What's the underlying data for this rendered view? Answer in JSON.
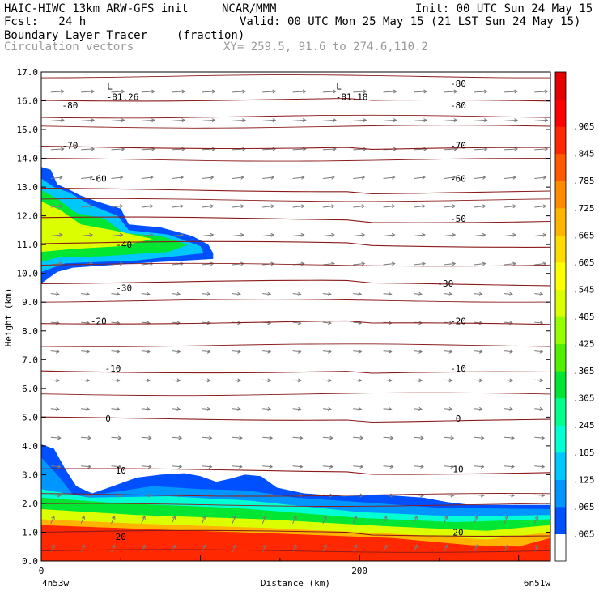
{
  "header": {
    "model": "HAIC-HIWC 13km ARW-GFS init",
    "org": "NCAR/MMM",
    "init": "Init: 00 UTC Sun 24 May 15",
    "fcst": "Fcst:   24 h",
    "valid": "Valid: 00 UTC Mon 25 May 15 (21 LST Sun 24 May 15)",
    "field1": "Boundary Layer Tracer",
    "field1_units": "(fraction)",
    "field2": "Circulation vectors",
    "xy": "XY= 259.5, 91.6 to 274.6,110.2"
  },
  "colors": {
    "frame": "#000000",
    "contour": "#8b1a1a",
    "vector": "#7a7a7a",
    "label_gray": "#9a9a9a"
  },
  "chart_data": {
    "type": "heatmap",
    "ylabel": "Height (km)",
    "xlabel": "Distance (km)",
    "xlim": [
      0,
      320
    ],
    "ylim": [
      0,
      17
    ],
    "x_ticks": [
      {
        "value": 0,
        "label": "0"
      },
      {
        "value": 200,
        "label": "200"
      }
    ],
    "x_endpoints": {
      "left": "4n53w",
      "right": "6n51w"
    },
    "y_ticks": [
      "0.0",
      "1.0",
      "2.0",
      "3.0",
      "4.0",
      "5.0",
      "6.0",
      "7.0",
      "8.0",
      "9.0",
      "10.0",
      "11.0",
      "12.0",
      "13.0",
      "14.0",
      "15.0",
      "16.0",
      "17.0"
    ],
    "colorbar": {
      "levels": [
        ".005",
        ".065",
        ".125",
        ".185",
        ".245",
        ".305",
        ".365",
        ".425",
        ".485",
        ".545",
        ".605",
        ".665",
        ".725",
        ".785",
        ".845",
        ".905",
        "-"
      ],
      "colors": [
        "#ffffff",
        "#0050ff",
        "#0096ff",
        "#00c8ff",
        "#00ffd2",
        "#00ff8c",
        "#00e632",
        "#50f000",
        "#96ff00",
        "#dcff00",
        "#ffff00",
        "#ffdc00",
        "#ffb400",
        "#ff8c00",
        "#ff5a00",
        "#ff2800",
        "#ff0000",
        "#e60000"
      ]
    },
    "temperature_contours": [
      {
        "value": 20,
        "height_km": 1.0
      },
      {
        "value": 10,
        "height_km": 3.15
      },
      {
        "value": 0,
        "height_km": 4.95
      },
      {
        "value": -10,
        "height_km": 6.6
      },
      {
        "value": -20,
        "height_km": 8.3
      },
      {
        "value": -30,
        "height_km": 9.7
      },
      {
        "value": -40,
        "height_km": 11.05
      },
      {
        "value": -50,
        "height_km": 11.9
      },
      {
        "value": -60,
        "height_km": 12.9
      },
      {
        "value": -70,
        "height_km": 14.4
      },
      {
        "value": -80,
        "height_km": 16.05
      }
    ],
    "contour_labels": [
      {
        "text": "20",
        "x": 50,
        "y": 0.85
      },
      {
        "text": "20",
        "x": 262,
        "y": 1.0
      },
      {
        "text": "10",
        "x": 50,
        "y": 3.15
      },
      {
        "text": "10",
        "x": 262,
        "y": 3.2
      },
      {
        "text": "0",
        "x": 42,
        "y": 4.95
      },
      {
        "text": "0",
        "x": 262,
        "y": 4.95
      },
      {
        "text": "-10",
        "x": 45,
        "y": 6.7
      },
      {
        "text": "-10",
        "x": 262,
        "y": 6.7
      },
      {
        "text": "-20",
        "x": 36,
        "y": 8.35
      },
      {
        "text": "-20",
        "x": 262,
        "y": 8.35
      },
      {
        "text": "-30",
        "x": 52,
        "y": 9.5
      },
      {
        "text": "-30",
        "x": 254,
        "y": 9.65
      },
      {
        "text": "-40",
        "x": 52,
        "y": 11.0
      },
      {
        "text": "-50",
        "x": 262,
        "y": 11.9
      },
      {
        "text": "-60",
        "x": 36,
        "y": 13.3
      },
      {
        "text": "-60",
        "x": 262,
        "y": 13.3
      },
      {
        "text": "-70",
        "x": 18,
        "y": 14.45
      },
      {
        "text": "-70",
        "x": 262,
        "y": 14.45
      },
      {
        "text": "-80",
        "x": 18,
        "y": 15.85
      },
      {
        "text": "-80",
        "x": 262,
        "y": 15.85
      },
      {
        "text": "-80",
        "x": 262,
        "y": 16.6
      }
    ],
    "minima_labels": [
      {
        "symbol": "L",
        "value": "-81.26",
        "x": 43,
        "y": 16.2
      },
      {
        "symbol": "L",
        "value": "-81.18",
        "x": 187,
        "y": 16.2
      }
    ],
    "tracer_layers": [
      {
        "level": 0.005,
        "top": [
          [
            0,
            4.05
          ],
          [
            8,
            3.9
          ],
          [
            15,
            3.2
          ],
          [
            22,
            2.6
          ],
          [
            32,
            2.35
          ],
          [
            45,
            2.6
          ],
          [
            60,
            2.9
          ],
          [
            75,
            3.0
          ],
          [
            90,
            3.05
          ],
          [
            100,
            2.95
          ],
          [
            110,
            2.75
          ],
          [
            118,
            2.85
          ],
          [
            128,
            3.0
          ],
          [
            138,
            2.95
          ],
          [
            148,
            2.55
          ],
          [
            165,
            2.35
          ],
          [
            190,
            2.25
          ],
          [
            215,
            2.3
          ],
          [
            240,
            2.2
          ],
          [
            255,
            2.05
          ],
          [
            270,
            1.95
          ],
          [
            285,
            1.95
          ],
          [
            320,
            1.95
          ]
        ]
      },
      {
        "level": 0.065,
        "top": [
          [
            0,
            3.6
          ],
          [
            10,
            3.0
          ],
          [
            20,
            2.3
          ],
          [
            40,
            2.35
          ],
          [
            70,
            2.6
          ],
          [
            100,
            2.5
          ],
          [
            130,
            2.45
          ],
          [
            160,
            2.2
          ],
          [
            200,
            2.05
          ],
          [
            250,
            1.85
          ],
          [
            320,
            1.8
          ]
        ]
      },
      {
        "level": 0.185,
        "top": [
          [
            0,
            2.5
          ],
          [
            30,
            2.2
          ],
          [
            80,
            2.25
          ],
          [
            130,
            2.1
          ],
          [
            200,
            1.7
          ],
          [
            260,
            1.55
          ],
          [
            320,
            1.6
          ]
        ]
      },
      {
        "level": 0.305,
        "top": [
          [
            0,
            2.2
          ],
          [
            50,
            2.0
          ],
          [
            120,
            1.85
          ],
          [
            200,
            1.5
          ],
          [
            260,
            1.35
          ],
          [
            320,
            1.45
          ]
        ]
      },
      {
        "level": 0.485,
        "top": [
          [
            0,
            1.8
          ],
          [
            60,
            1.6
          ],
          [
            140,
            1.45
          ],
          [
            220,
            1.2
          ],
          [
            280,
            1.05
          ],
          [
            320,
            1.25
          ]
        ]
      },
      {
        "level": 0.665,
        "top": [
          [
            0,
            1.45
          ],
          [
            60,
            1.3
          ],
          [
            140,
            1.15
          ],
          [
            220,
            0.95
          ],
          [
            280,
            0.75
          ],
          [
            320,
            1.0
          ]
        ]
      },
      {
        "level": 0.845,
        "top": [
          [
            0,
            1.25
          ],
          [
            70,
            1.1
          ],
          [
            150,
            0.95
          ],
          [
            220,
            0.8
          ],
          [
            270,
            0.55
          ],
          [
            300,
            0.5
          ],
          [
            320,
            0.8
          ]
        ]
      }
    ],
    "upper_plume": [
      {
        "level": 0.005,
        "poly": [
          [
            0,
            13.7
          ],
          [
            6,
            13.6
          ],
          [
            10,
            13.1
          ],
          [
            18,
            12.9
          ],
          [
            25,
            12.7
          ],
          [
            35,
            12.5
          ],
          [
            50,
            12.25
          ],
          [
            55,
            11.7
          ],
          [
            75,
            11.6
          ],
          [
            95,
            11.3
          ],
          [
            105,
            11.0
          ],
          [
            108,
            10.7
          ],
          [
            108,
            10.5
          ],
          [
            60,
            10.35
          ],
          [
            20,
            10.2
          ],
          [
            10,
            10.05
          ],
          [
            0,
            9.65
          ]
        ]
      },
      {
        "level": 0.125,
        "poly": [
          [
            0,
            13.3
          ],
          [
            8,
            13.0
          ],
          [
            18,
            12.8
          ],
          [
            30,
            12.4
          ],
          [
            48,
            12.0
          ],
          [
            55,
            11.5
          ],
          [
            80,
            11.35
          ],
          [
            100,
            10.95
          ],
          [
            102,
            10.7
          ],
          [
            60,
            10.45
          ],
          [
            15,
            10.35
          ],
          [
            0,
            10.05
          ]
        ]
      },
      {
        "level": 0.305,
        "poly": [
          [
            0,
            12.9
          ],
          [
            10,
            12.6
          ],
          [
            22,
            12.1
          ],
          [
            40,
            11.9
          ],
          [
            52,
            11.4
          ],
          [
            75,
            11.3
          ],
          [
            92,
            11.0
          ],
          [
            80,
            10.75
          ],
          [
            40,
            10.6
          ],
          [
            10,
            10.55
          ],
          [
            0,
            10.4
          ]
        ]
      },
      {
        "level": 0.485,
        "poly": [
          [
            0,
            12.5
          ],
          [
            12,
            12.2
          ],
          [
            25,
            11.7
          ],
          [
            45,
            11.5
          ],
          [
            70,
            11.2
          ],
          [
            50,
            10.95
          ],
          [
            20,
            10.85
          ],
          [
            0,
            10.75
          ]
        ]
      }
    ]
  }
}
